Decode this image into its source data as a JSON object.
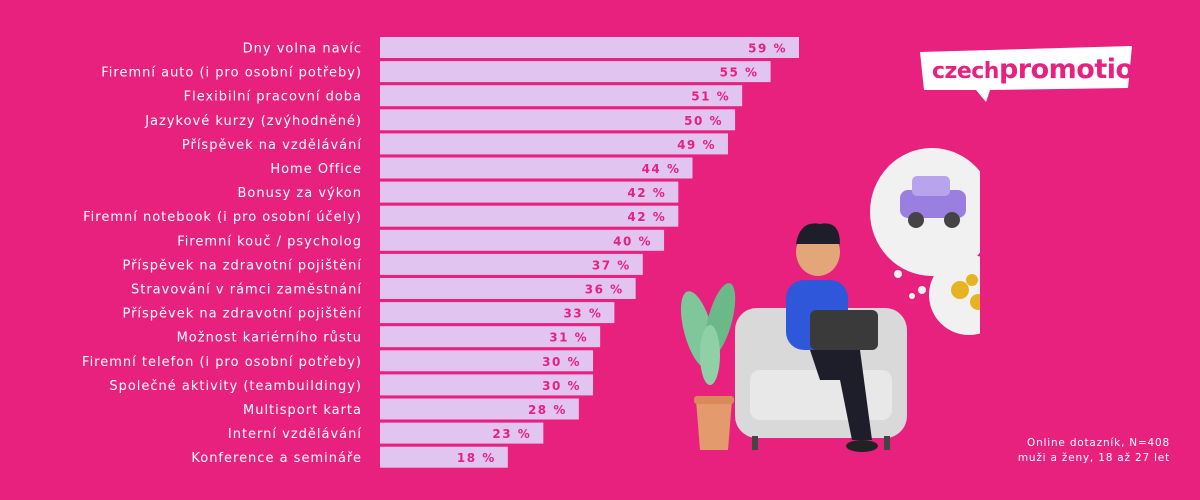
{
  "chart_data": {
    "type": "bar",
    "orientation": "horizontal",
    "categories": [
      "Dny volna navíc",
      "Firemní auto (i pro osobní potřeby)",
      "Flexibilní pracovní doba",
      "Jazykové kurzy (zvýhodněné)",
      "Příspěvek na vzdělávání",
      "Home Office",
      "Bonusy za výkon",
      "Firemní notebook (i pro osobní účely)",
      "Firemní kouč / psycholog",
      "Příspěvek na zdravotní pojištění",
      "Stravování v rámci zaměstnání",
      "Příspěvek na zdravotní pojištění",
      "Možnost kariérního růstu",
      "Firemní telefon (i pro osobní potřeby)",
      "Společné aktivity (teambuildingy)",
      "Multisport karta",
      "Interní vzdělávání",
      "Konference a semináře"
    ],
    "values": [
      59,
      55,
      51,
      50,
      49,
      44,
      42,
      42,
      40,
      37,
      36,
      33,
      31,
      30,
      30,
      28,
      23,
      18
    ],
    "value_suffix": " %",
    "xlim": [
      0,
      59
    ],
    "colors": {
      "bar": "#e2c4f0",
      "value_text": "#e8217f",
      "label_text": "#ffffff",
      "background": "#e8217f"
    }
  },
  "logo": {
    "text_small": "czech",
    "text_big": "promotion"
  },
  "footnote": {
    "line1": "Online dotazník, N=408",
    "line2": "muži a ženy, 18 až 27 let"
  }
}
